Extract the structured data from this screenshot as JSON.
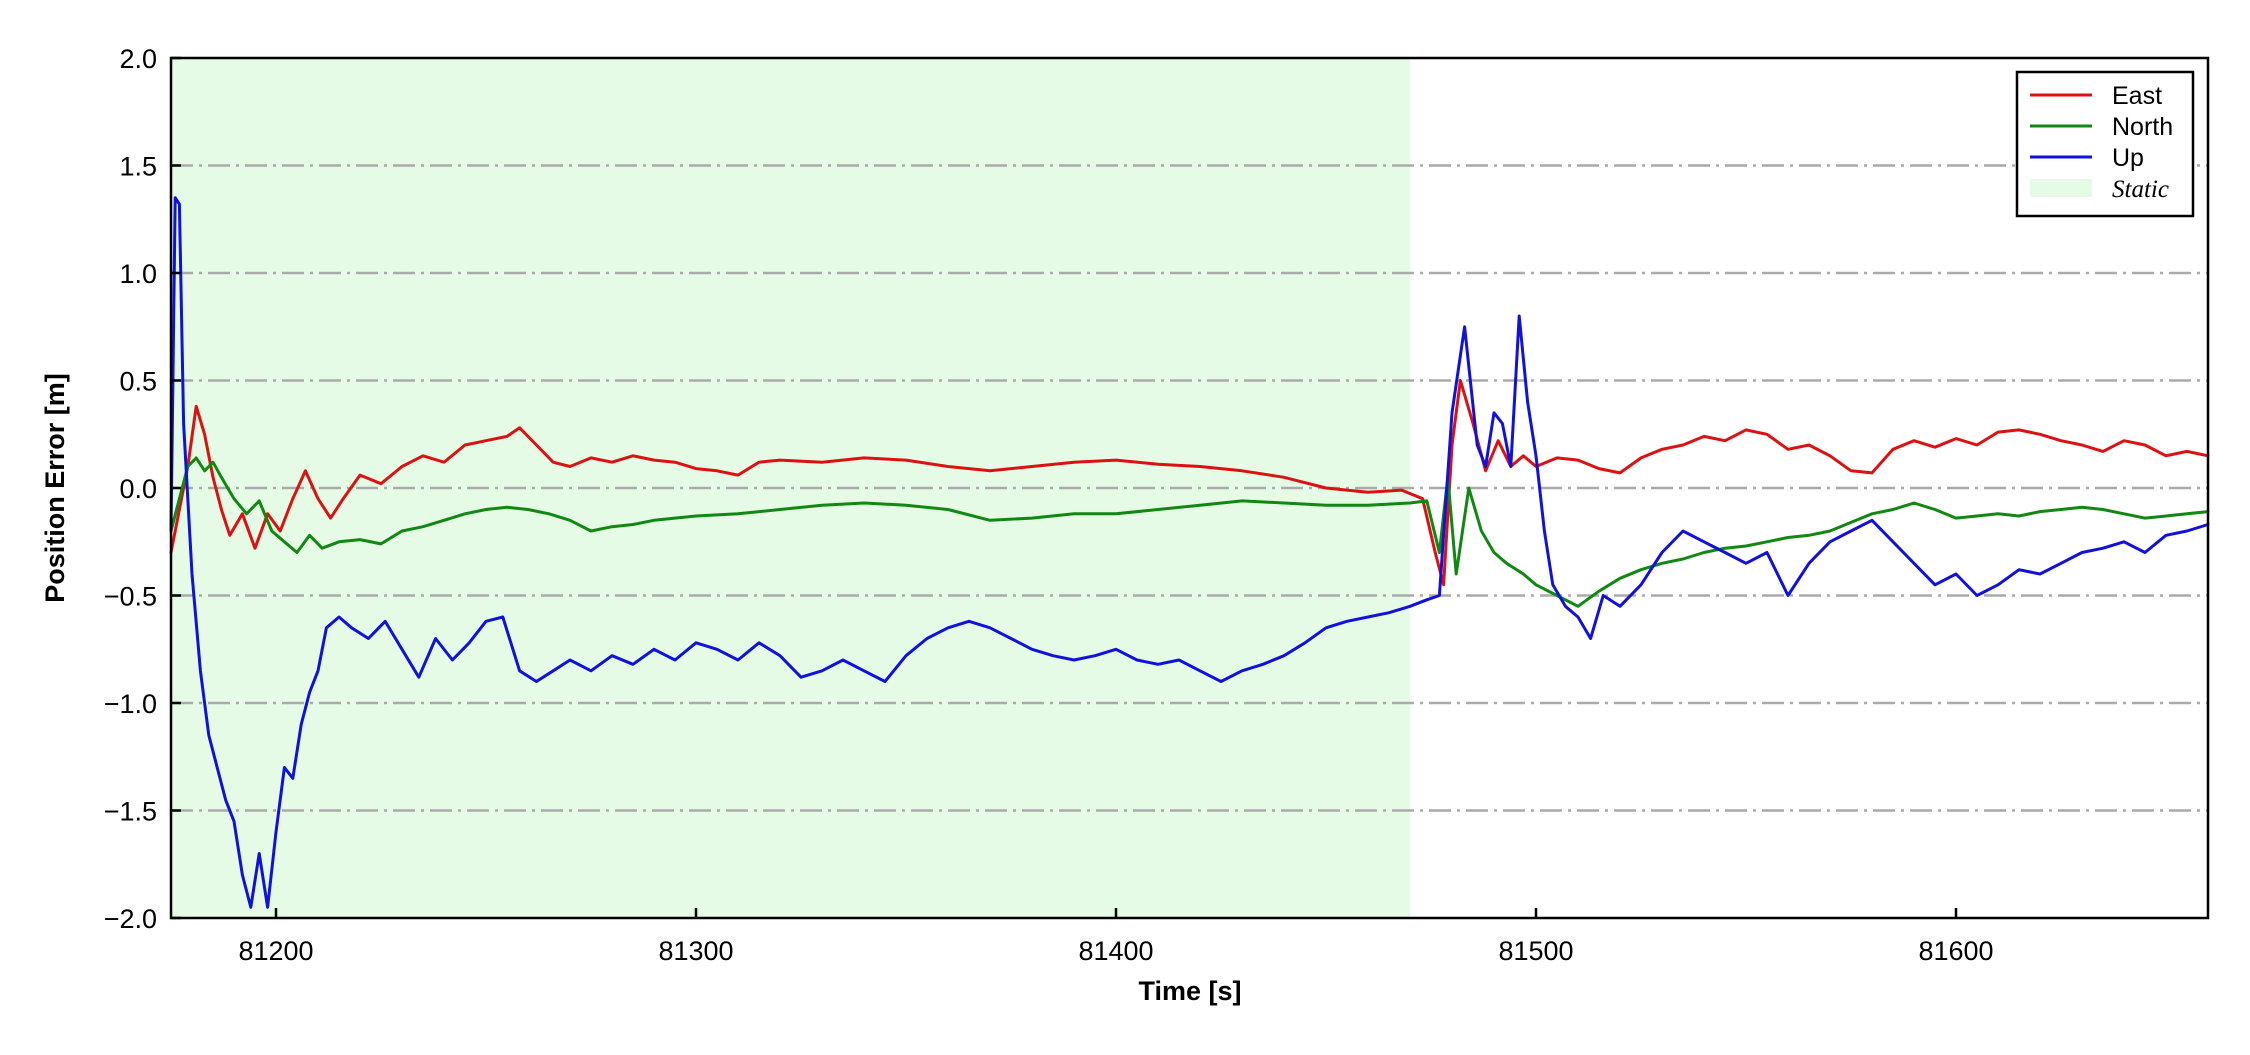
{
  "chart_data": {
    "type": "line",
    "title": "",
    "xlabel": "Time [s]",
    "ylabel": "Position Error [m]",
    "xlim": [
      81175,
      81660
    ],
    "ylim": [
      -2.0,
      2.0
    ],
    "x_ticks": [
      81200,
      81300,
      81400,
      81500,
      81600
    ],
    "x_tick_labels": [
      "81200",
      "81300",
      "81400",
      "81500",
      "81600"
    ],
    "y_ticks": [
      -2.0,
      -1.5,
      -1.0,
      -0.5,
      0.0,
      0.5,
      1.0,
      1.5,
      2.0
    ],
    "y_tick_labels": [
      "−2.0",
      "−1.5",
      "−1.0",
      "−0.5",
      "0.0",
      "0.5",
      "1.0",
      "1.5",
      "2.0"
    ],
    "grid": "horizontal dash-dot",
    "legend_position": "top-right",
    "shaded_region": {
      "name": "Static",
      "x_start": 81175,
      "x_end": 81470,
      "color": "#e6fbe6"
    },
    "series": [
      {
        "name": "East",
        "color": "#dd1111",
        "x": [
          81175,
          81177,
          81179,
          81181,
          81183,
          81185,
          81187,
          81189,
          81192,
          81195,
          81198,
          81201,
          81204,
          81207,
          81210,
          81213,
          81216,
          81220,
          81225,
          81230,
          81235,
          81240,
          81245,
          81250,
          81255,
          81258,
          81262,
          81266,
          81270,
          81275,
          81280,
          81285,
          81290,
          81295,
          81300,
          81305,
          81310,
          81315,
          81320,
          81330,
          81340,
          81350,
          81360,
          81370,
          81380,
          81390,
          81400,
          81410,
          81420,
          81430,
          81440,
          81450,
          81460,
          81468,
          81473,
          81476,
          81478,
          81480,
          81482,
          81485,
          81488,
          81491,
          81494,
          81497,
          81500,
          81505,
          81510,
          81515,
          81520,
          81525,
          81530,
          81535,
          81540,
          81545,
          81550,
          81555,
          81560,
          81565,
          81570,
          81575,
          81580,
          81585,
          81590,
          81595,
          81600,
          81605,
          81610,
          81615,
          81620,
          81625,
          81630,
          81635,
          81640,
          81645,
          81650,
          81655,
          81660
        ],
        "y": [
          -0.3,
          -0.1,
          0.1,
          0.38,
          0.25,
          0.05,
          -0.1,
          -0.22,
          -0.12,
          -0.28,
          -0.12,
          -0.2,
          -0.05,
          0.08,
          -0.05,
          -0.14,
          -0.05,
          0.06,
          0.02,
          0.1,
          0.15,
          0.12,
          0.2,
          0.22,
          0.24,
          0.28,
          0.2,
          0.12,
          0.1,
          0.14,
          0.12,
          0.15,
          0.13,
          0.12,
          0.09,
          0.08,
          0.06,
          0.12,
          0.13,
          0.12,
          0.14,
          0.13,
          0.1,
          0.08,
          0.1,
          0.12,
          0.13,
          0.11,
          0.1,
          0.08,
          0.05,
          0.0,
          -0.02,
          -0.01,
          -0.05,
          -0.3,
          -0.45,
          0.2,
          0.5,
          0.3,
          0.08,
          0.22,
          0.1,
          0.15,
          0.1,
          0.14,
          0.13,
          0.09,
          0.07,
          0.14,
          0.18,
          0.2,
          0.24,
          0.22,
          0.27,
          0.25,
          0.18,
          0.2,
          0.15,
          0.08,
          0.07,
          0.18,
          0.22,
          0.19,
          0.23,
          0.2,
          0.26,
          0.27,
          0.25,
          0.22,
          0.2,
          0.17,
          0.22,
          0.2,
          0.15,
          0.17,
          0.15
        ]
      },
      {
        "name": "North",
        "color": "#118811",
        "x": [
          81175,
          81177,
          81179,
          81181,
          81183,
          81185,
          81187,
          81190,
          81193,
          81196,
          81199,
          81202,
          81205,
          81208,
          81211,
          81215,
          81220,
          81225,
          81230,
          81235,
          81240,
          81245,
          81250,
          81255,
          81260,
          81265,
          81270,
          81275,
          81280,
          81285,
          81290,
          81295,
          81300,
          81310,
          81320,
          81330,
          81340,
          81350,
          81360,
          81370,
          81380,
          81390,
          81400,
          81410,
          81420,
          81430,
          81440,
          81450,
          81460,
          81470,
          81474,
          81477,
          81479,
          81481,
          81484,
          81487,
          81490,
          81493,
          81497,
          81500,
          81505,
          81510,
          81515,
          81520,
          81525,
          81530,
          81535,
          81540,
          81545,
          81550,
          81555,
          81560,
          81565,
          81570,
          81575,
          81580,
          81585,
          81590,
          81595,
          81600,
          81605,
          81610,
          81615,
          81620,
          81625,
          81630,
          81635,
          81640,
          81645,
          81650,
          81655,
          81660
        ],
        "y": [
          -0.2,
          -0.05,
          0.1,
          0.14,
          0.08,
          0.12,
          0.05,
          -0.05,
          -0.12,
          -0.06,
          -0.2,
          -0.25,
          -0.3,
          -0.22,
          -0.28,
          -0.25,
          -0.24,
          -0.26,
          -0.2,
          -0.18,
          -0.15,
          -0.12,
          -0.1,
          -0.09,
          -0.1,
          -0.12,
          -0.15,
          -0.2,
          -0.18,
          -0.17,
          -0.15,
          -0.14,
          -0.13,
          -0.12,
          -0.1,
          -0.08,
          -0.07,
          -0.08,
          -0.1,
          -0.15,
          -0.14,
          -0.12,
          -0.12,
          -0.1,
          -0.08,
          -0.06,
          -0.07,
          -0.08,
          -0.08,
          -0.07,
          -0.06,
          -0.3,
          0.05,
          -0.4,
          0.0,
          -0.2,
          -0.3,
          -0.35,
          -0.4,
          -0.45,
          -0.5,
          -0.55,
          -0.48,
          -0.42,
          -0.38,
          -0.35,
          -0.33,
          -0.3,
          -0.28,
          -0.27,
          -0.25,
          -0.23,
          -0.22,
          -0.2,
          -0.16,
          -0.12,
          -0.1,
          -0.07,
          -0.1,
          -0.14,
          -0.13,
          -0.12,
          -0.13,
          -0.11,
          -0.1,
          -0.09,
          -0.1,
          -0.12,
          -0.14,
          -0.13,
          -0.12,
          -0.11
        ]
      },
      {
        "name": "Up",
        "color": "#1111dd",
        "x": [
          81175,
          81176,
          81177,
          81178,
          81180,
          81182,
          81184,
          81186,
          81188,
          81190,
          81192,
          81194,
          81196,
          81198,
          81200,
          81202,
          81204,
          81206,
          81208,
          81210,
          81212,
          81215,
          81218,
          81222,
          81226,
          81230,
          81234,
          81238,
          81242,
          81246,
          81250,
          81254,
          81258,
          81262,
          81266,
          81270,
          81275,
          81280,
          81285,
          81290,
          81295,
          81300,
          81305,
          81310,
          81315,
          81320,
          81325,
          81330,
          81335,
          81340,
          81345,
          81350,
          81355,
          81360,
          81365,
          81370,
          81375,
          81380,
          81385,
          81390,
          81395,
          81400,
          81405,
          81410,
          81415,
          81420,
          81425,
          81430,
          81435,
          81440,
          81445,
          81450,
          81455,
          81460,
          81465,
          81470,
          81474,
          81477,
          81480,
          81483,
          81486,
          81488,
          81490,
          81492,
          81494,
          81496,
          81498,
          81500,
          81502,
          81504,
          81507,
          81510,
          81513,
          81516,
          81520,
          81525,
          81530,
          81535,
          81540,
          81545,
          81550,
          81555,
          81560,
          81565,
          81570,
          81575,
          81580,
          81585,
          81590,
          81595,
          81600,
          81605,
          81610,
          81615,
          81620,
          81625,
          81630,
          81635,
          81640,
          81645,
          81650,
          81655,
          81660
        ],
        "y": [
          -0.2,
          1.35,
          1.32,
          0.3,
          -0.4,
          -0.85,
          -1.15,
          -1.3,
          -1.45,
          -1.55,
          -1.8,
          -1.95,
          -1.7,
          -1.95,
          -1.6,
          -1.3,
          -1.35,
          -1.1,
          -0.95,
          -0.85,
          -0.65,
          -0.6,
          -0.65,
          -0.7,
          -0.62,
          -0.75,
          -0.88,
          -0.7,
          -0.8,
          -0.72,
          -0.62,
          -0.6,
          -0.85,
          -0.9,
          -0.85,
          -0.8,
          -0.85,
          -0.78,
          -0.82,
          -0.75,
          -0.8,
          -0.72,
          -0.75,
          -0.8,
          -0.72,
          -0.78,
          -0.88,
          -0.85,
          -0.8,
          -0.85,
          -0.9,
          -0.78,
          -0.7,
          -0.65,
          -0.62,
          -0.65,
          -0.7,
          -0.75,
          -0.78,
          -0.8,
          -0.78,
          -0.75,
          -0.8,
          -0.82,
          -0.8,
          -0.85,
          -0.9,
          -0.85,
          -0.82,
          -0.78,
          -0.72,
          -0.65,
          -0.62,
          -0.6,
          -0.58,
          -0.55,
          -0.52,
          -0.5,
          0.35,
          0.75,
          0.2,
          0.1,
          0.35,
          0.3,
          0.1,
          0.8,
          0.4,
          0.15,
          -0.2,
          -0.45,
          -0.55,
          -0.6,
          -0.7,
          -0.5,
          -0.55,
          -0.45,
          -0.3,
          -0.2,
          -0.25,
          -0.3,
          -0.35,
          -0.3,
          -0.5,
          -0.35,
          -0.25,
          -0.2,
          -0.15,
          -0.25,
          -0.35,
          -0.45,
          -0.4,
          -0.5,
          -0.45,
          -0.38,
          -0.4,
          -0.35,
          -0.3,
          -0.28,
          -0.25,
          -0.3,
          -0.22,
          -0.2,
          -0.17
        ]
      }
    ]
  }
}
